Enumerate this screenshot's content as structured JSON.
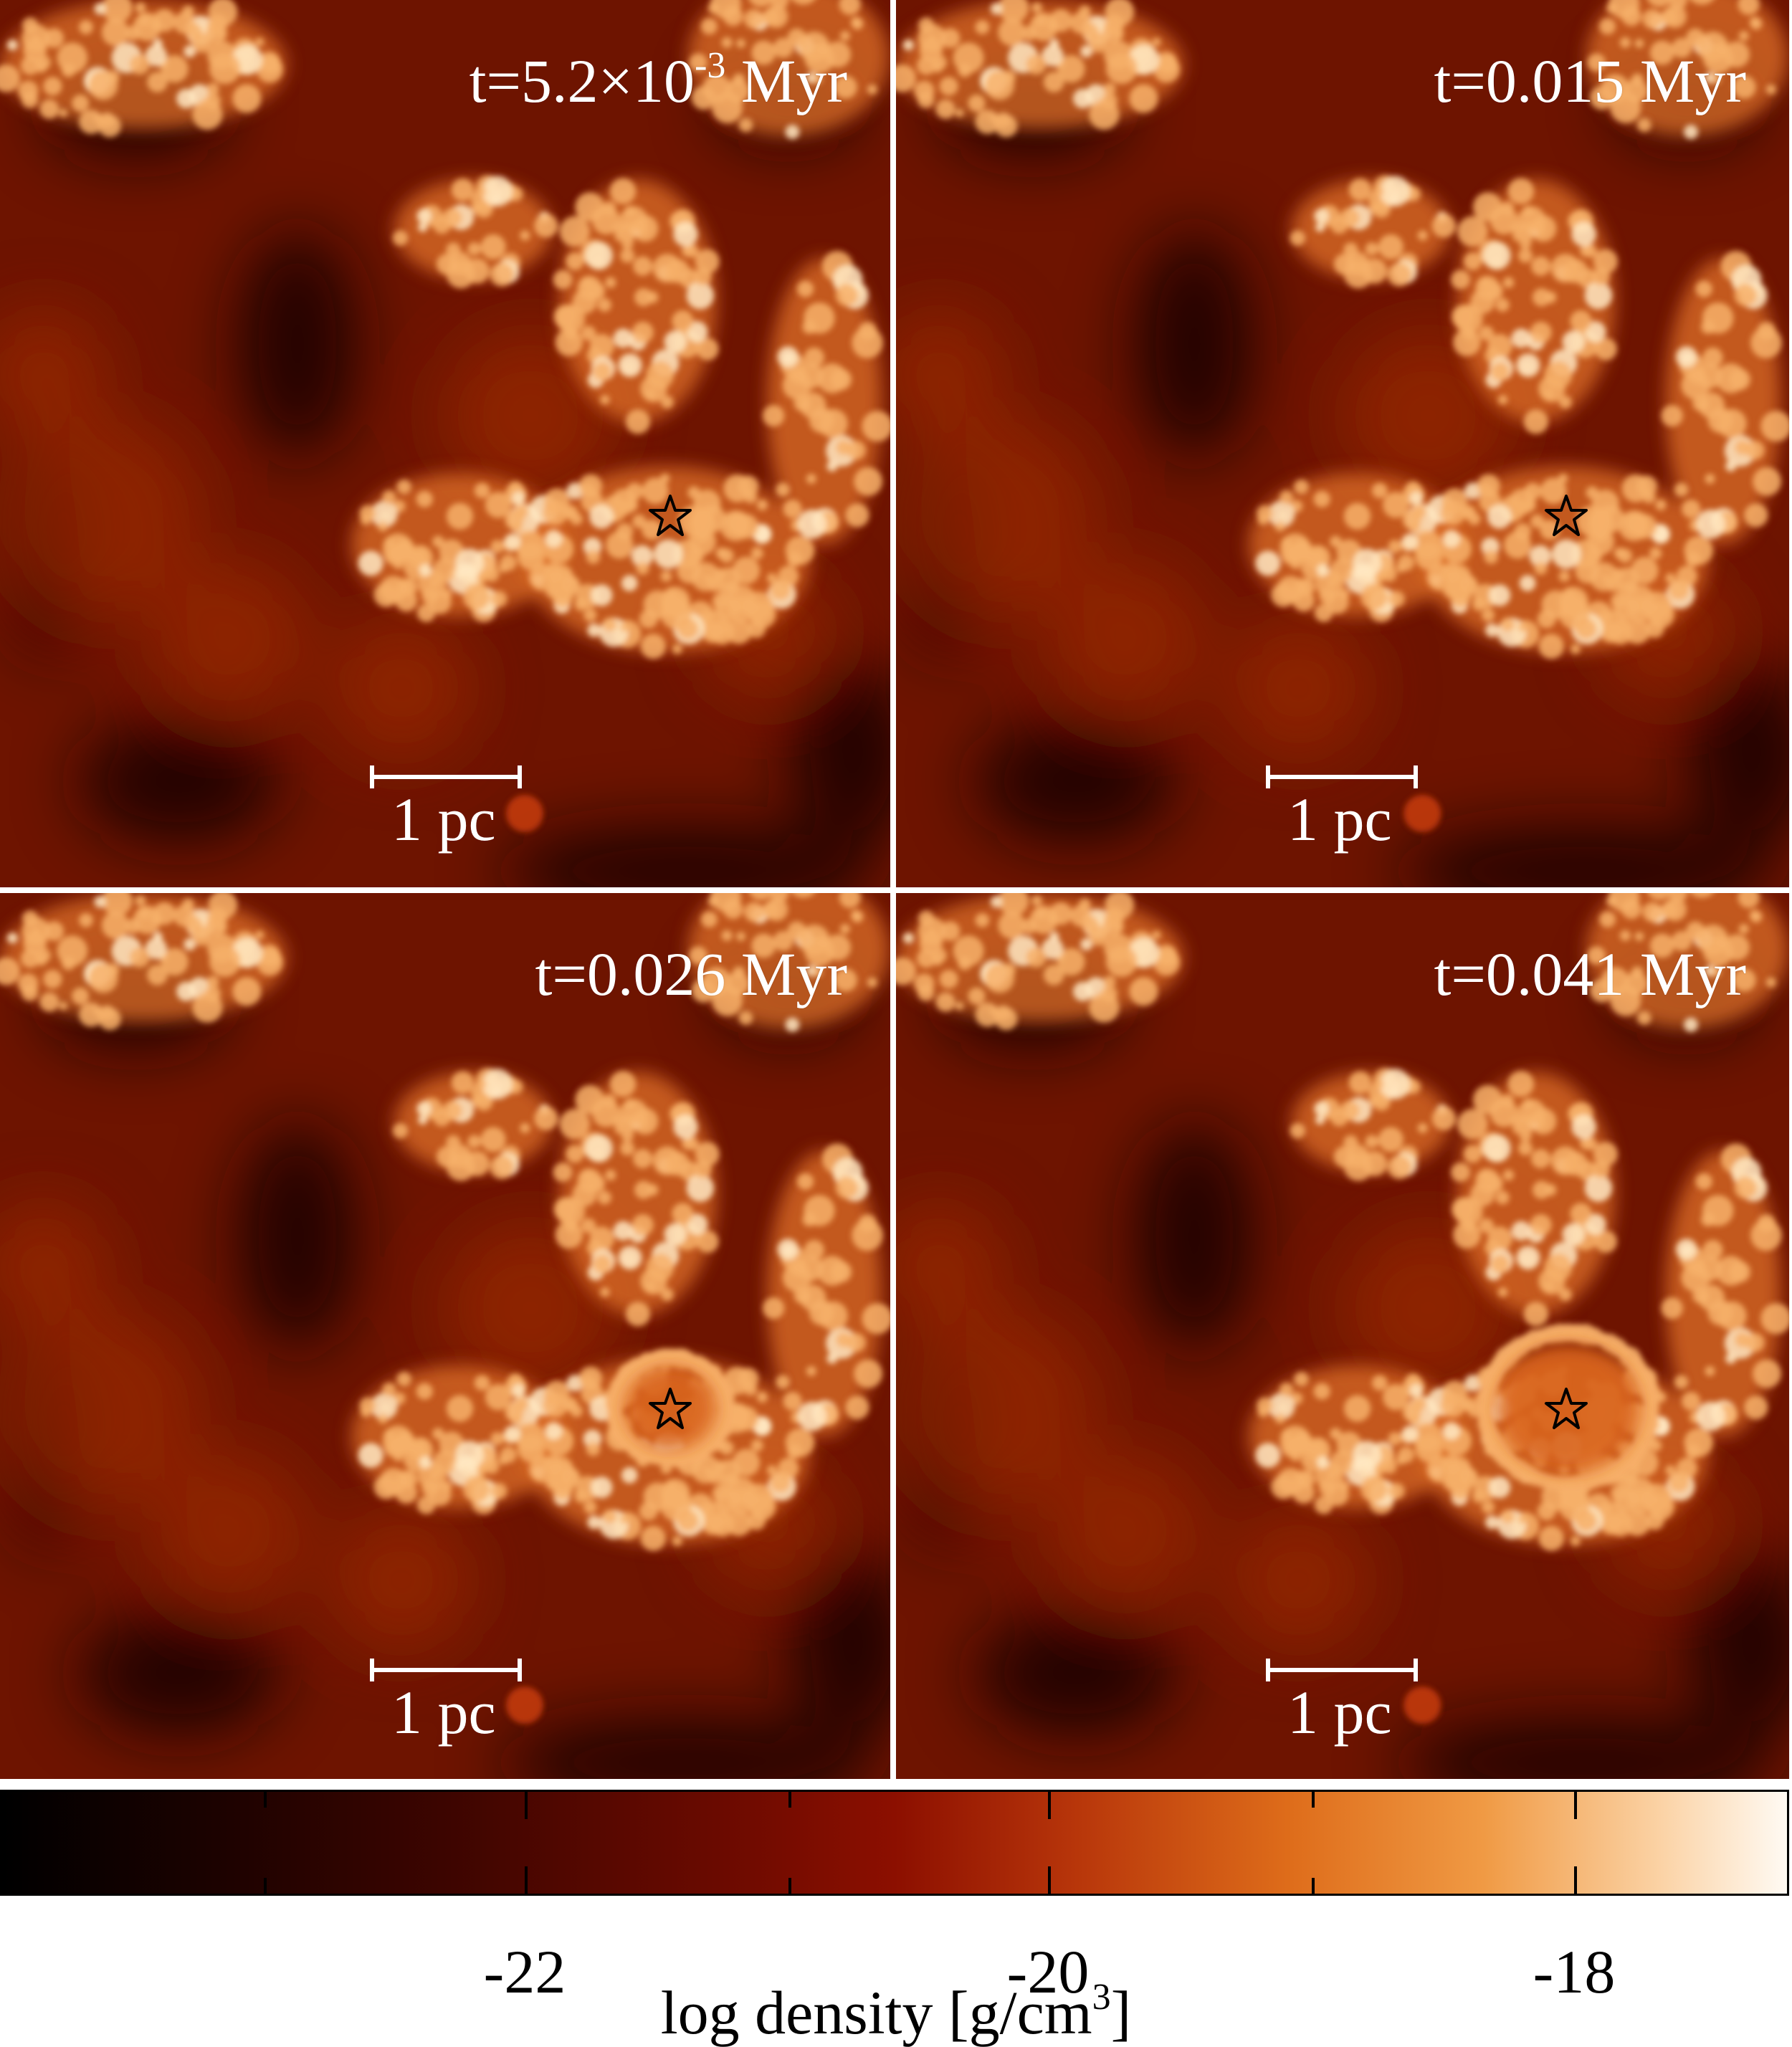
{
  "panels": [
    {
      "time_label_base": "t=5.2×10",
      "time_label_exp": "-3",
      "time_label_unit": " Myr",
      "scale_label": "1 pc",
      "ring": false
    },
    {
      "time_label_base": "t=0.015 Myr",
      "time_label_exp": "",
      "time_label_unit": "",
      "scale_label": "1 pc",
      "ring": false
    },
    {
      "time_label_base": "t=0.026 Myr",
      "time_label_exp": "",
      "time_label_unit": "",
      "scale_label": "1 pc",
      "ring": true
    },
    {
      "time_label_base": "t=0.041 Myr",
      "time_label_exp": "",
      "time_label_unit": "",
      "scale_label": "1 pc",
      "ring": true
    }
  ],
  "colorbar": {
    "tick_labels": [
      "-22",
      "-20",
      "-18"
    ],
    "title_main": "log density [g/cm",
    "title_exp": "3",
    "title_end": "]"
  },
  "colors": {
    "background_dark": "#6e1400",
    "gas_bright": "#f7b06a",
    "gas_hot": "#ffe7c2",
    "void": "#1a0000",
    "star_stroke": "#000000"
  }
}
